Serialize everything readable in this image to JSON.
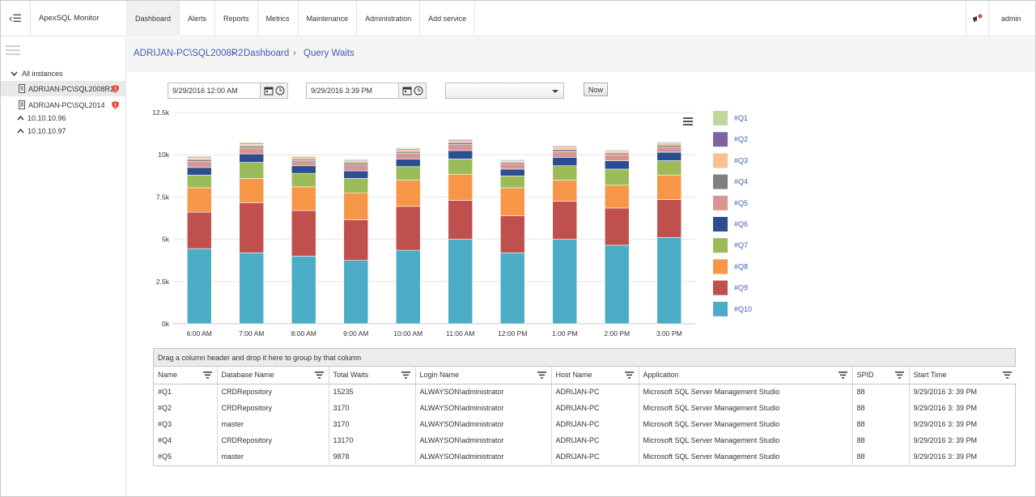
{
  "app": {
    "title": "ApexSQL Monitor",
    "user": "admin"
  },
  "nav": [
    {
      "label": "Dashboard",
      "active": true
    },
    {
      "label": "Alerts"
    },
    {
      "label": "Reports"
    },
    {
      "label": "Metrics"
    },
    {
      "label": "Maintenance"
    },
    {
      "label": "Administration"
    },
    {
      "label": "Add service"
    }
  ],
  "sidebar": {
    "root_label": "All instances",
    "items": [
      {
        "label": "ADRIJAN-PC\\SQL2008R2",
        "icon": "server-icon",
        "warning": true,
        "selected": true
      },
      {
        "label": "ADRIJAN-PC\\SQL2014",
        "icon": "server-icon",
        "warning": true
      },
      {
        "label": "10.10.10.96",
        "icon": "chevron-up-icon"
      },
      {
        "label": "10.10.10.97",
        "icon": "chevron-up-icon"
      }
    ]
  },
  "breadcrumb": [
    "ADRIJAN-PC\\SQL2008R2",
    "Dashboard",
    "Query Waits"
  ],
  "filters": {
    "start": "9/29/2016 12:00 AM",
    "end": "9/29/2016 3:39 PM",
    "select_value": "",
    "now_label": "Now"
  },
  "chart_data": {
    "type": "bar",
    "stacked": true,
    "categories": [
      "6:00 AM",
      "7:00 AM",
      "8:00 AM",
      "9:00 AM",
      "10:00 AM",
      "11:00 AM",
      "12:00 PM",
      "1:00 PM",
      "2:00 PM",
      "3:00 PM"
    ],
    "yticks": [
      "0k",
      "2.5k",
      "5k",
      "7.5k",
      "10k",
      "12.5k"
    ],
    "ylim": [
      0,
      12500
    ],
    "grid": true,
    "legend_position": "right",
    "series": [
      {
        "name": "#Q10",
        "color": "#4bacc6",
        "values": [
          4450,
          4200,
          4000,
          3750,
          4350,
          5000,
          4200,
          5000,
          4650,
          5100
        ]
      },
      {
        "name": "#Q9",
        "color": "#c0504d",
        "values": [
          2150,
          2950,
          2700,
          2400,
          2600,
          2300,
          2200,
          2250,
          2200,
          2250
        ]
      },
      {
        "name": "#Q8",
        "color": "#f79646",
        "values": [
          1450,
          1450,
          1400,
          1600,
          1550,
          1550,
          1650,
          1250,
          1350,
          1450
        ]
      },
      {
        "name": "#Q7",
        "color": "#9bbb59",
        "values": [
          750,
          950,
          800,
          850,
          800,
          900,
          700,
          850,
          950,
          850
        ]
      },
      {
        "name": "#Q6",
        "color": "#2c4d8f",
        "values": [
          450,
          500,
          450,
          450,
          450,
          500,
          400,
          500,
          500,
          500
        ]
      },
      {
        "name": "#Q5",
        "color": "#d99594",
        "values": [
          350,
          350,
          300,
          350,
          350,
          350,
          300,
          350,
          350,
          300
        ]
      },
      {
        "name": "#Q4",
        "color": "#7f7f7f",
        "values": [
          120,
          120,
          100,
          120,
          100,
          120,
          100,
          120,
          100,
          120
        ]
      },
      {
        "name": "#Q3",
        "color": "#fac08f",
        "values": [
          80,
          100,
          80,
          80,
          100,
          100,
          80,
          100,
          100,
          80
        ]
      },
      {
        "name": "#Q2",
        "color": "#8064a2",
        "values": [
          60,
          60,
          50,
          60,
          60,
          60,
          50,
          60,
          50,
          60
        ]
      },
      {
        "name": "#Q1",
        "color": "#c3d69b",
        "values": [
          60,
          60,
          50,
          60,
          60,
          60,
          50,
          60,
          50,
          60
        ]
      }
    ]
  },
  "grid": {
    "group_hint": "Drag a column header and drop it here to group by that column",
    "columns": [
      "Name",
      "Database Name",
      "Total Waits",
      "Login Name",
      "Host Name",
      "Application",
      "SPID",
      "Start Time"
    ],
    "rows": [
      [
        "#Q1",
        "CRDRepository",
        "15235",
        "ALWAYSON\\administrator",
        "ADRIJAN-PC",
        "Microsoft SQL Server Management Studio",
        "88",
        "9/29/2016 3: 39 PM"
      ],
      [
        "#Q2",
        "CRDRepository",
        "3170",
        "ALWAYSON\\administrator",
        "ADRIJAN-PC",
        "Microsoft SQL Server Management Studio",
        "88",
        "9/29/2016 3: 39 PM"
      ],
      [
        "#Q3",
        "master",
        "3170",
        "ALWAYSON\\administrator",
        "ADRIJAN-PC",
        "Microsoft SQL Server Management Studio",
        "88",
        "9/29/2016 3: 39 PM"
      ],
      [
        "#Q4",
        "CRDRepository",
        "13170",
        "ALWAYSON\\administrator",
        "ADRIJAN-PC",
        "Microsoft SQL Server Management Studio",
        "88",
        "9/29/2016 3: 39 PM"
      ],
      [
        "#Q5",
        "master",
        "9878",
        "ALWAYSON\\administrator",
        "ADRIJAN-PC",
        "Microsoft SQL Server Management Studio",
        "88",
        "9/29/2016 3: 39 PM"
      ]
    ]
  }
}
